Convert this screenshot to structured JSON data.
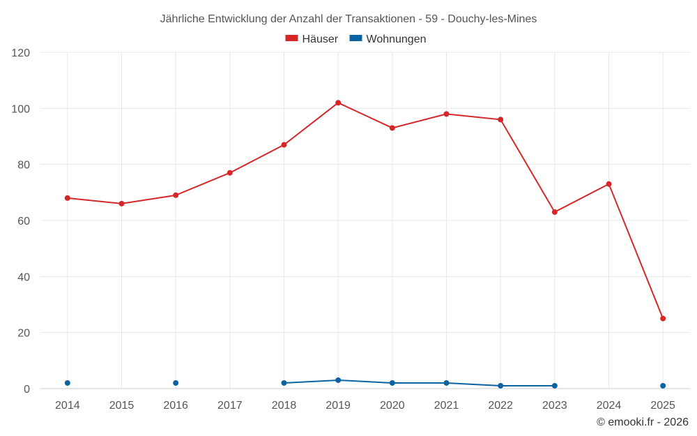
{
  "chart_data": {
    "type": "line",
    "title": "Jährliche Entwicklung der Anzahl der Transaktionen - 59 - Douchy-les-Mines",
    "categories": [
      "2014",
      "2015",
      "2016",
      "2017",
      "2018",
      "2019",
      "2020",
      "2021",
      "2022",
      "2023",
      "2024",
      "2025"
    ],
    "y_ticks": [
      0,
      20,
      40,
      60,
      80,
      100,
      120
    ],
    "ylim": [
      0,
      120
    ],
    "grid": true,
    "legend_position": "top-center",
    "series": [
      {
        "name": "Häuser",
        "color": "#d62728",
        "values": [
          68,
          66,
          69,
          77,
          87,
          102,
          93,
          98,
          96,
          63,
          73,
          25
        ]
      },
      {
        "name": "Wohnungen",
        "color": "#0a64a4",
        "values": [
          2,
          null,
          2,
          null,
          2,
          3,
          2,
          2,
          1,
          1,
          null,
          1
        ]
      }
    ]
  },
  "credit": "© emooki.fr - 2026"
}
